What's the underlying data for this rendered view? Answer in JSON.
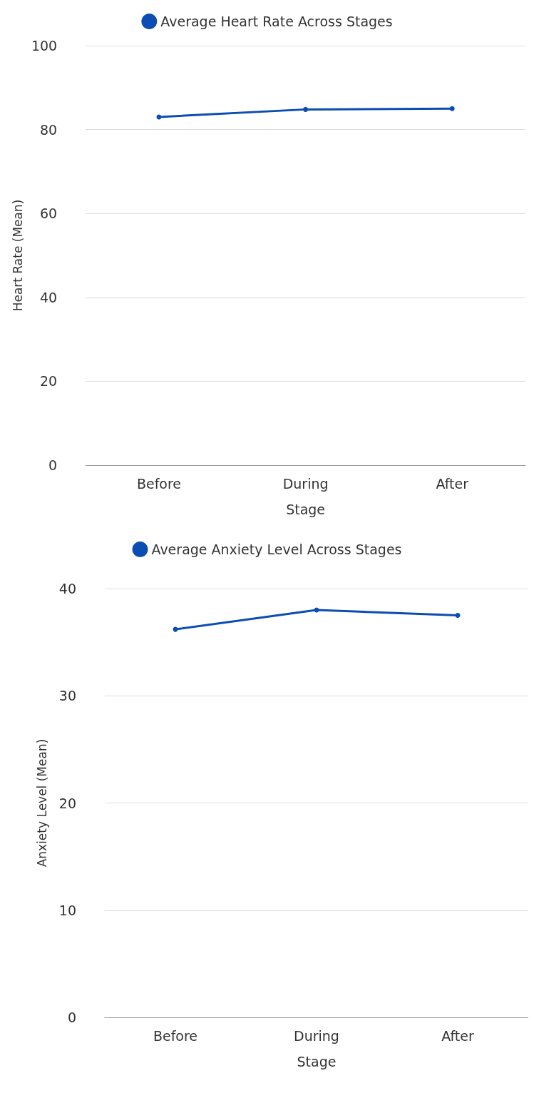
{
  "chart_data": [
    {
      "type": "line",
      "xlabel": "Stage",
      "ylabel": "Heart Rate (Mean)",
      "categories": [
        "Before",
        "During",
        "After"
      ],
      "series": [
        {
          "name": "Average Heart Rate Across Stages",
          "color": "#0b4db3",
          "values": [
            83.0,
            84.8,
            85.0
          ]
        }
      ],
      "ylim": [
        0,
        100
      ],
      "yticks": [
        0,
        20,
        40,
        60,
        80,
        100
      ],
      "grid": "y",
      "legend": "top",
      "marker": "circle",
      "line_style": "solid"
    },
    {
      "type": "line",
      "xlabel": "Stage",
      "ylabel": "Anxiety Level (Mean)",
      "categories": [
        "Before",
        "During",
        "After"
      ],
      "series": [
        {
          "name": "Average Anxiety Level Across Stages",
          "color": "#0b4db3",
          "values": [
            36.2,
            38.0,
            37.5
          ]
        }
      ],
      "ylim": [
        0,
        40
      ],
      "yticks": [
        0,
        10,
        20,
        30,
        40
      ],
      "grid": "y",
      "legend": "top",
      "marker": "circle",
      "line_style": "solid"
    }
  ]
}
